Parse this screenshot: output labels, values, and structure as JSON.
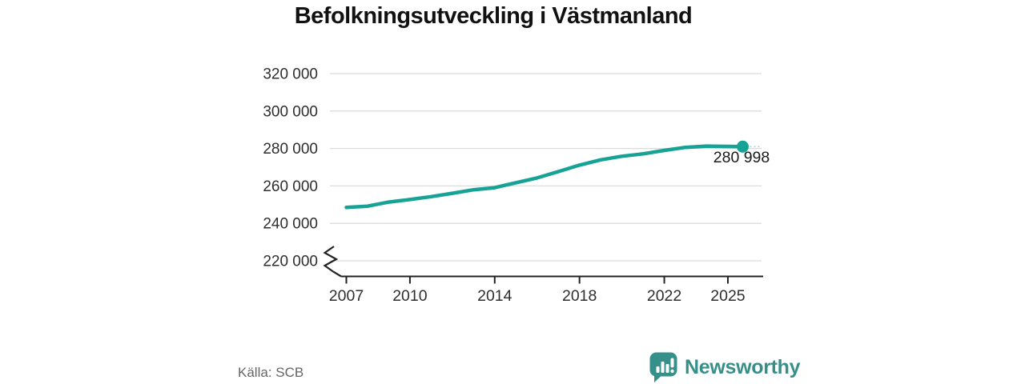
{
  "title": "Befolkningsutveckling i Västmanland",
  "source_label": "Källa: SCB",
  "branding": {
    "name": "Newsworthy",
    "icon": "newsworthy-speech-bubble-bar-chart-icon",
    "color": "#35908A"
  },
  "colors": {
    "line": "#16A294",
    "grid": "#DCDCDC",
    "axis": "#222222",
    "tick_text": "#2E2E2E",
    "title_text": "#111111",
    "source_text": "#666666",
    "annotation_text": "#1A1A1A"
  },
  "chart_data": {
    "type": "line",
    "title": "Befolkningsutveckling i Västmanland",
    "x": [
      2007,
      2008,
      2009,
      2010,
      2011,
      2012,
      2013,
      2014,
      2015,
      2016,
      2017,
      2018,
      2019,
      2020,
      2021,
      2022,
      2023,
      2024
    ],
    "values": [
      248489,
      249182,
      251353,
      252756,
      254257,
      256059,
      257970,
      259054,
      261703,
      264276,
      267629,
      271095,
      273929,
      275845,
      277141,
      278967,
      280584,
      281271
    ],
    "latest": {
      "x_position": 2025.7,
      "value": 280998,
      "label": "280 998"
    },
    "x_tick_labels": [
      "2007",
      "2010",
      "2014",
      "2018",
      "2022",
      "2025"
    ],
    "y_ticks": [
      {
        "value": 320000,
        "label": "320 000"
      },
      {
        "value": 300000,
        "label": "300 000"
      },
      {
        "value": 280000,
        "label": "280 000"
      },
      {
        "value": 260000,
        "label": "260 000"
      },
      {
        "value": 240000,
        "label": "240 000"
      },
      {
        "value": 220000,
        "label": "220 000"
      }
    ],
    "ylim": [
      220000,
      320000
    ],
    "xlabel": "",
    "ylabel": "",
    "grid": "horizontal",
    "legend": "none",
    "axis_break_bottom_left": true,
    "source": "Källa: SCB"
  }
}
